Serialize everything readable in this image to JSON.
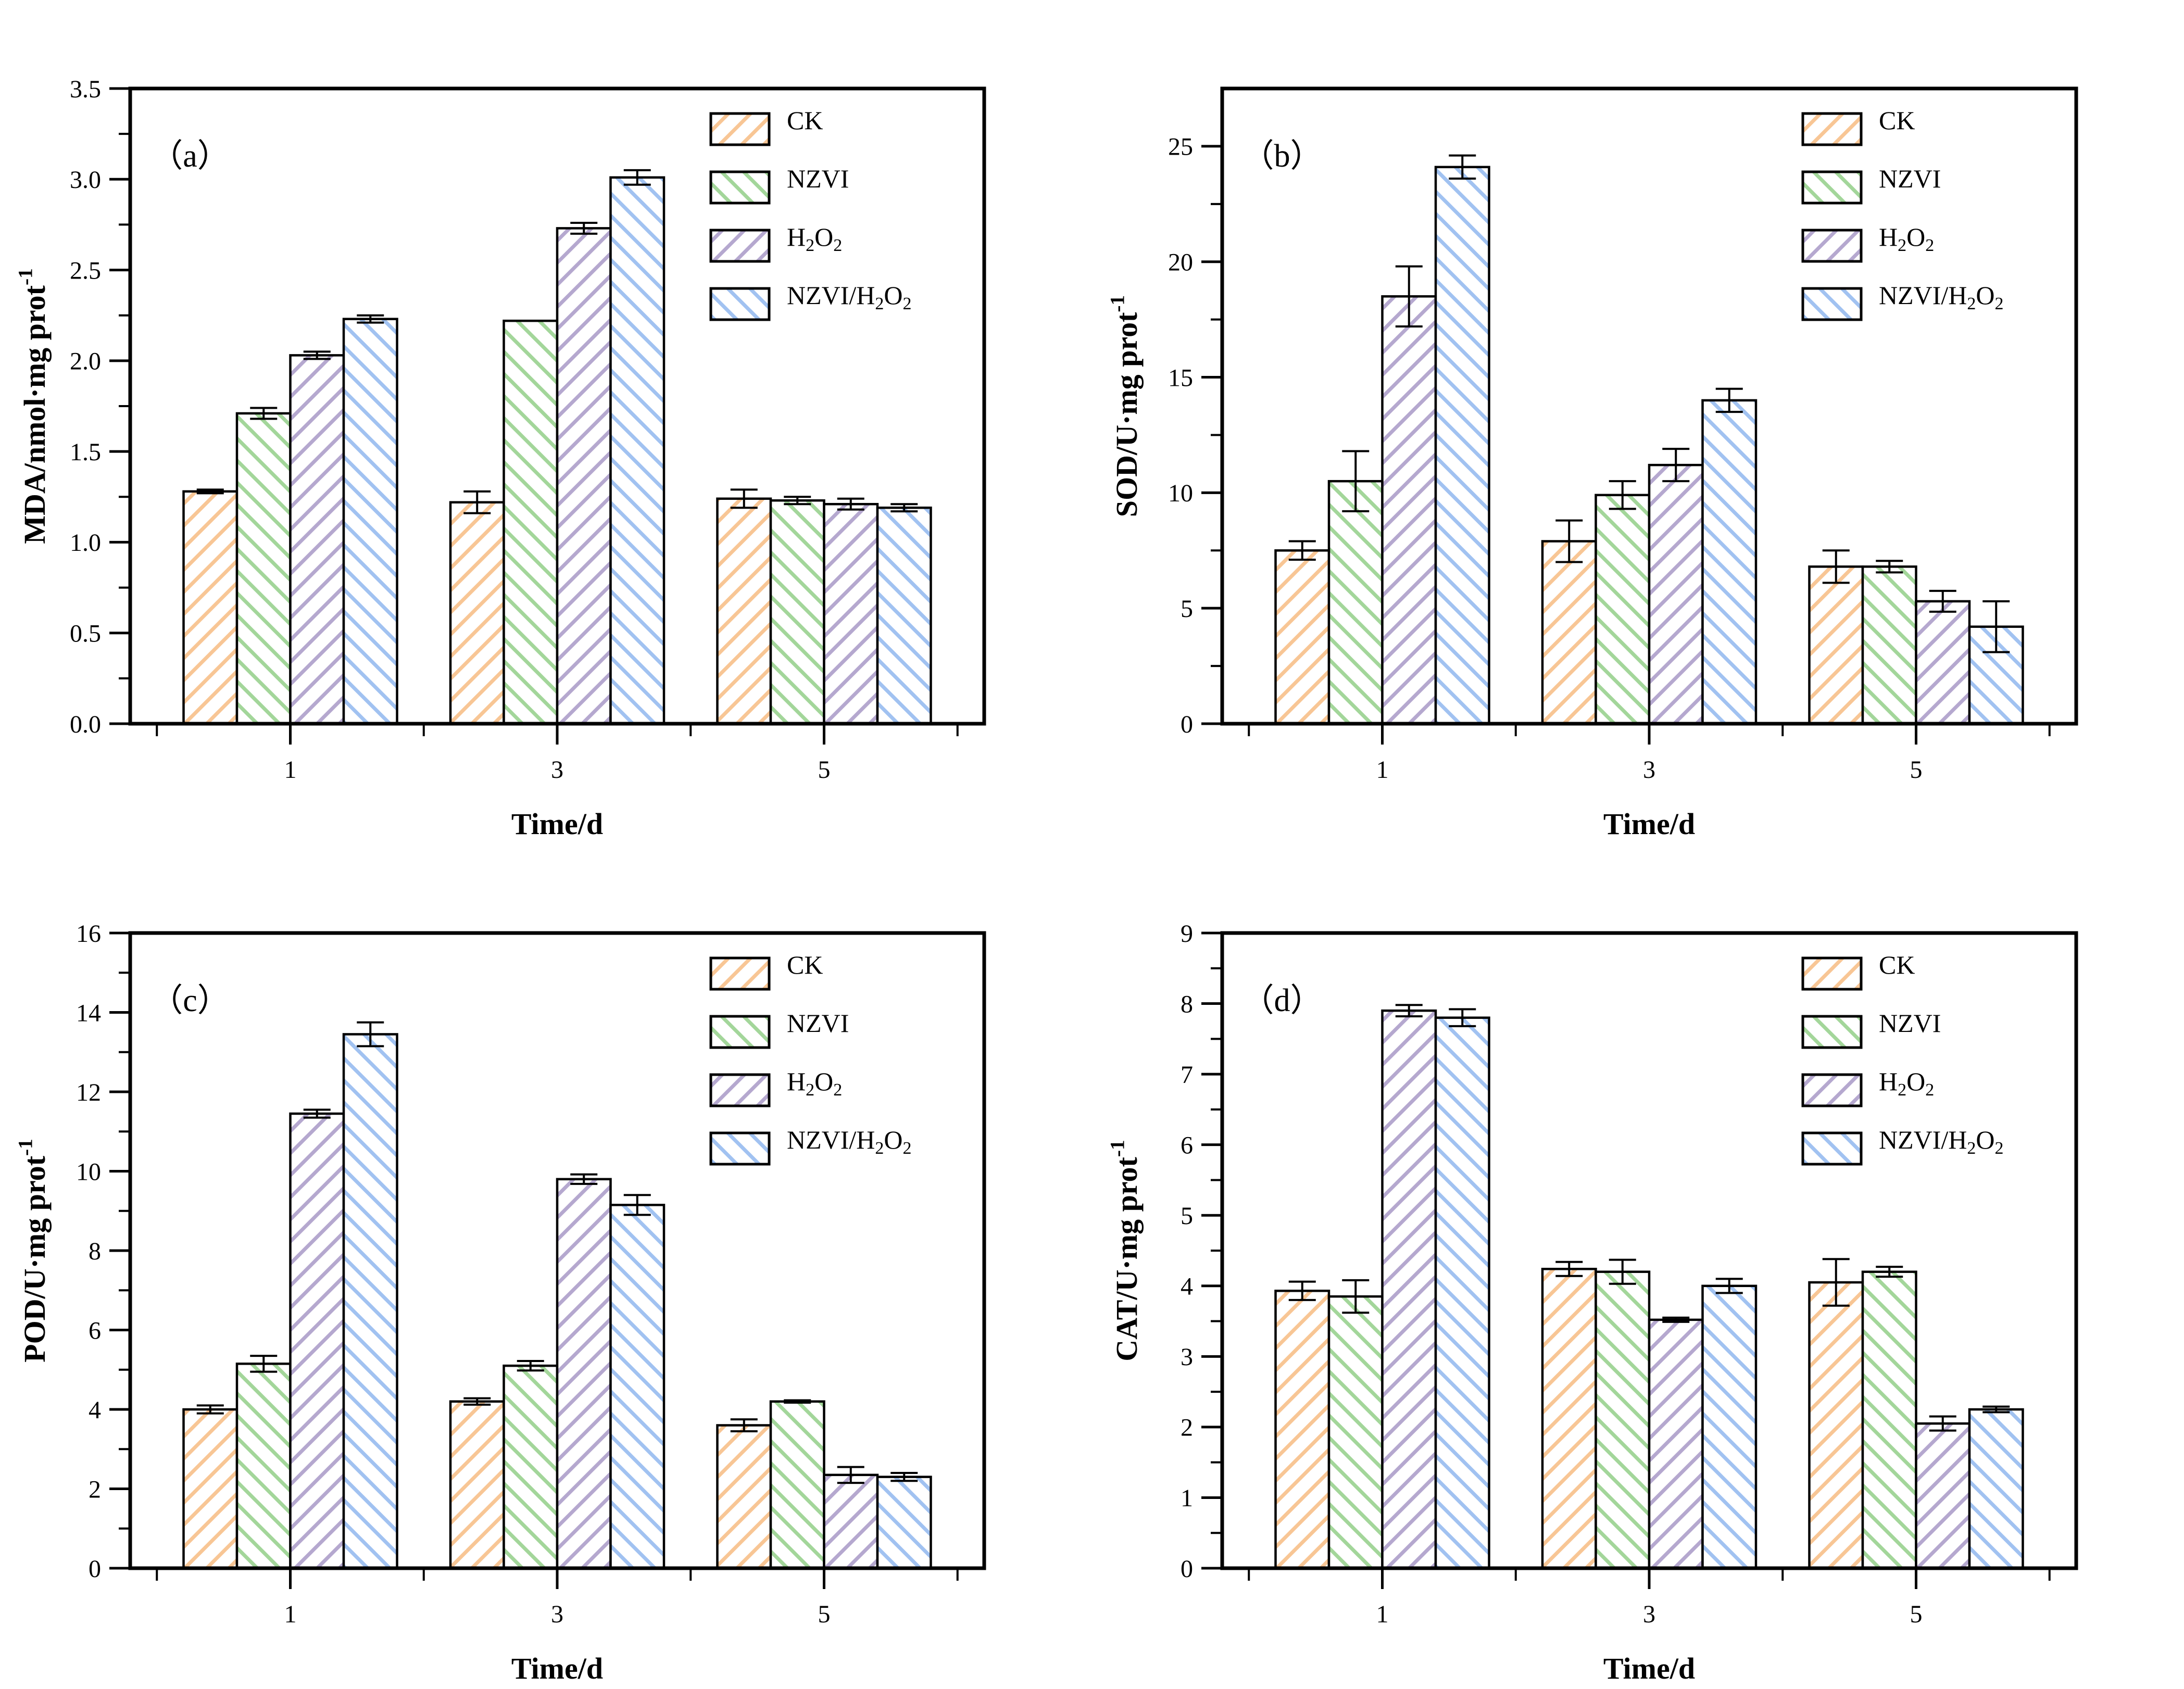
{
  "figure_background": "#ffffff",
  "styles": {
    "axis_color": "#000000",
    "bar_edge_color": "#000000",
    "error_bar_color": "#000000",
    "panel_tag_color": "#f80d0d"
  },
  "legend": {
    "items": [
      {
        "label": "CK",
        "color": "#F8C695",
        "hatch": "/"
      },
      {
        "label": "NZVI",
        "color": "#A3D69A",
        "hatch": "\\"
      },
      {
        "label": "H_{2}O_{2}",
        "color": "#B5A8CF",
        "hatch": "/"
      },
      {
        "label": "NZVI/H_{2}O_{2}",
        "color": "#A1C2F1",
        "hatch": "\\"
      }
    ]
  },
  "chart_data": [
    {
      "id": "a",
      "type": "bar",
      "tag": "（a）",
      "ylabel": "MDA/nmol·mg prot^{-1}",
      "xlabel": "Time/d",
      "ylim": [
        0,
        3.5
      ],
      "yticks": {
        "values": [
          0,
          0.5,
          1,
          1.5,
          2,
          2.5,
          3,
          3.5
        ],
        "labels": [
          "0.0",
          "0.5",
          "1.0",
          "1.5",
          "2.0",
          "2.5",
          "3.0",
          "3.5"
        ]
      },
      "yminor_step": 0.25,
      "categories": [
        "1",
        "3",
        "5"
      ],
      "legend_position": "upper-right",
      "series": [
        {
          "name": "CK",
          "values": [
            1.28,
            1.22,
            1.24
          ],
          "errors": [
            0.01,
            0.06,
            0.05
          ]
        },
        {
          "name": "NZVI",
          "values": [
            1.71,
            2.22,
            1.23
          ],
          "errors": [
            0.03,
            0.0,
            0.02
          ]
        },
        {
          "name": "H_{2}O_{2}",
          "values": [
            2.03,
            2.73,
            1.21
          ],
          "errors": [
            0.02,
            0.03,
            0.03
          ]
        },
        {
          "name": "NZVI/H_{2}O_{2}",
          "values": [
            2.23,
            3.01,
            1.19
          ],
          "errors": [
            0.02,
            0.04,
            0.02
          ]
        }
      ]
    },
    {
      "id": "b",
      "type": "bar",
      "tag": "（b）",
      "ylabel": "SOD/U·mg prot^{-1}",
      "xlabel": "Time/d",
      "ylim": [
        0,
        27.5
      ],
      "yticks": {
        "values": [
          0,
          5,
          10,
          15,
          20,
          25
        ],
        "labels": [
          "0",
          "5",
          "10",
          "15",
          "20",
          "25"
        ]
      },
      "yminor_step": 2.5,
      "categories": [
        "1",
        "3",
        "5"
      ],
      "legend_position": "upper-right",
      "series": [
        {
          "name": "CK",
          "values": [
            7.5,
            7.9,
            6.8
          ],
          "errors": [
            0.4,
            0.9,
            0.7
          ]
        },
        {
          "name": "NZVI",
          "values": [
            10.5,
            9.9,
            6.8
          ],
          "errors": [
            1.3,
            0.6,
            0.25
          ]
        },
        {
          "name": "H_{2}O_{2}",
          "values": [
            18.5,
            11.2,
            5.3
          ],
          "errors": [
            1.3,
            0.7,
            0.45
          ]
        },
        {
          "name": "NZVI/H_{2}O_{2}",
          "values": [
            24.1,
            14.0,
            4.2
          ],
          "errors": [
            0.5,
            0.5,
            1.1
          ]
        }
      ]
    },
    {
      "id": "c",
      "type": "bar",
      "tag": "（c）",
      "ylabel": "POD/U·mg prot^{-1}",
      "xlabel": "Time/d",
      "ylim": [
        0,
        16
      ],
      "yticks": {
        "values": [
          0,
          2,
          4,
          6,
          8,
          10,
          12,
          14,
          16
        ],
        "labels": [
          "0",
          "2",
          "4",
          "6",
          "8",
          "10",
          "12",
          "14",
          "16"
        ]
      },
      "yminor_step": 1,
      "categories": [
        "1",
        "3",
        "5"
      ],
      "legend_position": "upper-right",
      "series": [
        {
          "name": "CK",
          "values": [
            4.0,
            4.2,
            3.6
          ],
          "errors": [
            0.1,
            0.08,
            0.15
          ]
        },
        {
          "name": "NZVI",
          "values": [
            5.15,
            5.1,
            4.2
          ],
          "errors": [
            0.2,
            0.12,
            0.03
          ]
        },
        {
          "name": "H_{2}O_{2}",
          "values": [
            11.45,
            9.8,
            2.35
          ],
          "errors": [
            0.1,
            0.12,
            0.2
          ]
        },
        {
          "name": "NZVI/H_{2}O_{2}",
          "values": [
            13.45,
            9.15,
            2.3
          ],
          "errors": [
            0.3,
            0.25,
            0.1
          ]
        }
      ]
    },
    {
      "id": "d",
      "type": "bar",
      "tag": "（d）",
      "ylabel": "CAT/U·mg prot^{-1}",
      "xlabel": "Time/d",
      "ylim": [
        0,
        9
      ],
      "yticks": {
        "values": [
          0,
          1,
          2,
          3,
          4,
          5,
          6,
          7,
          8,
          9
        ],
        "labels": [
          "0",
          "1",
          "2",
          "3",
          "4",
          "5",
          "6",
          "7",
          "8",
          "9"
        ]
      },
      "yminor_step": 0.5,
      "categories": [
        "1",
        "3",
        "5"
      ],
      "legend_position": "upper-right",
      "series": [
        {
          "name": "CK",
          "values": [
            3.93,
            4.24,
            4.05
          ],
          "errors": [
            0.13,
            0.1,
            0.33
          ]
        },
        {
          "name": "NZVI",
          "values": [
            3.85,
            4.2,
            4.2
          ],
          "errors": [
            0.23,
            0.17,
            0.07
          ]
        },
        {
          "name": "H_{2}O_{2}",
          "values": [
            7.9,
            3.52,
            2.05
          ],
          "errors": [
            0.08,
            0.03,
            0.1
          ]
        },
        {
          "name": "NZVI/H_{2}O_{2}",
          "values": [
            7.8,
            4.0,
            2.25
          ],
          "errors": [
            0.12,
            0.1,
            0.04
          ]
        }
      ]
    }
  ]
}
